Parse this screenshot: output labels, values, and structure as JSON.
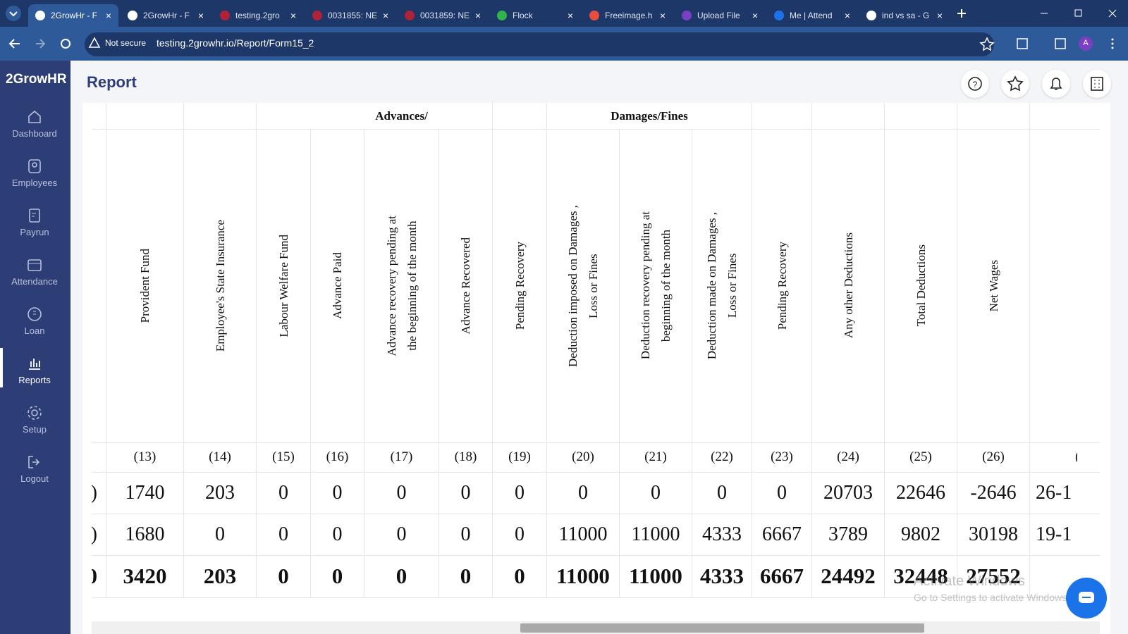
{
  "browser": {
    "tabs": [
      "2GrowHr - F",
      "2GrowHr - F",
      "testing.2gro",
      "0031855: NE",
      "0031859: NE",
      "Flock",
      "Freeimage.h",
      "Upload File",
      "Me | Attend",
      "ind vs sa - G"
    ],
    "security": "Not secure",
    "url": "testing.2growhr.io/Report/Form15_2",
    "profile": "A"
  },
  "sidebar": {
    "logo": "2GrowHR",
    "nav": [
      "Dashboard",
      "Employees",
      "Payrun",
      "Attendance",
      "Loan",
      "Reports",
      "Setup",
      "Logout"
    ],
    "active": "Reports"
  },
  "header": {
    "title": "Report"
  },
  "table": {
    "groups": [
      "Advances/",
      "Damages/Fines"
    ],
    "columns": [
      {
        "header": [
          "Provident Fund"
        ],
        "number": "(13)"
      },
      {
        "header": [
          "Employee's State Insurance"
        ],
        "number": "(14)"
      },
      {
        "header": [
          "Labour Welfare Fund"
        ],
        "number": "(15)"
      },
      {
        "header": [
          "Advance Paid"
        ],
        "number": "(16)"
      },
      {
        "header": [
          "Advance recovery pending at",
          "the beginning of the month"
        ],
        "number": "(17)"
      },
      {
        "header": [
          "Advance Recovered"
        ],
        "number": "(18)"
      },
      {
        "header": [
          "Pending Recovery"
        ],
        "number": "(19)"
      },
      {
        "header": [
          "Deduction imposed on Damages ,",
          "Loss or Fines"
        ],
        "number": "(20)"
      },
      {
        "header": [
          "Deduction recovery pending at",
          "beginning of the month"
        ],
        "number": "(21)"
      },
      {
        "header": [
          "Deduction made on Damages ,",
          "Loss or Fines"
        ],
        "number": "(22)"
      },
      {
        "header": [
          "Pending Recovery"
        ],
        "number": "(23)"
      },
      {
        "header": [
          "Any other Deductions"
        ],
        "number": "(24)"
      },
      {
        "header": [
          "Total Deductions"
        ],
        "number": "(25)"
      },
      {
        "header": [
          "Net Wages"
        ],
        "number": "(26)"
      }
    ],
    "rows": [
      [
        1740,
        203,
        0,
        0,
        0,
        0,
        0,
        0,
        0,
        0,
        0,
        20703,
        22646,
        -2646
      ],
      [
        1680,
        0,
        0,
        0,
        0,
        0,
        0,
        11000,
        11000,
        4333,
        6667,
        3789,
        9802,
        30198
      ],
      [
        3420,
        203,
        0,
        0,
        0,
        0,
        0,
        11000,
        11000,
        4333,
        6667,
        24492,
        32448,
        27552
      ]
    ],
    "left_edge": [
      ")",
      ")",
      "0"
    ],
    "right_edge": {
      "number": "(",
      "rows": [
        "26-1",
        "19-1"
      ]
    }
  },
  "watermark": {
    "title": "Activate Windows",
    "text": "Go to Settings to activate Windows."
  }
}
